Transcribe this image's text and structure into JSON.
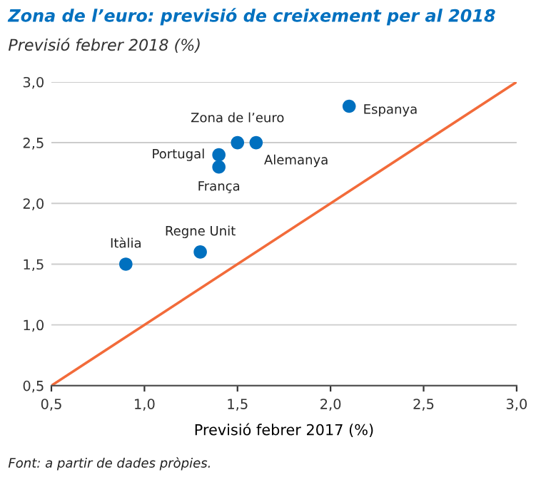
{
  "chart_data": {
    "type": "scatter",
    "title": "Zona de l’euro: previsió de creixement per al 2018",
    "subtitle": "Previsió febrer 2018 (%)",
    "xlabel": "Previsió febrer 2017 (%)",
    "series": [
      {
        "color": "#0070bf",
        "marker": "circle",
        "x": [
          2.1,
          1.5,
          1.6,
          1.4,
          1.4,
          1.3,
          0.9
        ],
        "values": [
          2.8,
          2.5,
          2.5,
          2.4,
          2.3,
          1.6,
          1.5
        ]
      },
      {
        "type": "line",
        "marker": "none",
        "color": "#f26b3a",
        "x": [
          0.5,
          3.0
        ],
        "values": [
          0.5,
          3.0
        ]
      }
    ],
    "annotations": [
      {
        "text": "Espanya",
        "x": 2.1,
        "y": 2.8
      },
      {
        "text": "Zona de l’euro",
        "x": 1.5,
        "y": 2.5
      },
      {
        "text": "Alemanya",
        "x": 1.6,
        "y": 2.5
      },
      {
        "text": "Portugal",
        "x": 1.4,
        "y": 2.4
      },
      {
        "text": "França",
        "x": 1.4,
        "y": 2.3
      },
      {
        "text": "Regne Unit",
        "x": 1.3,
        "y": 1.6
      },
      {
        "text": "Itàlia",
        "x": 0.9,
        "y": 1.5
      },
      "Font: a partir de dades pròpies."
    ],
    "xlim": [
      0.5,
      3.0
    ],
    "ylim": [
      0.5,
      3.0
    ],
    "xticks": [
      {
        "value": 0.5,
        "label": "0,5"
      },
      {
        "value": 1.0,
        "label": "1,0"
      },
      {
        "value": 1.5,
        "label": "1,5"
      },
      {
        "value": 2.0,
        "label": "2,0"
      },
      {
        "value": 2.5,
        "label": "2,5"
      },
      {
        "value": 3.0,
        "label": "3,0"
      }
    ],
    "yticks": [
      {
        "value": 0.5,
        "label": "0,5"
      },
      {
        "value": 1.0,
        "label": "1,0"
      },
      {
        "value": 1.5,
        "label": "1,5"
      },
      {
        "value": 2.0,
        "label": "2,0"
      },
      {
        "value": 2.5,
        "label": "2,5"
      },
      {
        "value": 3.0,
        "label": "3,0"
      }
    ],
    "grid": "y"
  }
}
